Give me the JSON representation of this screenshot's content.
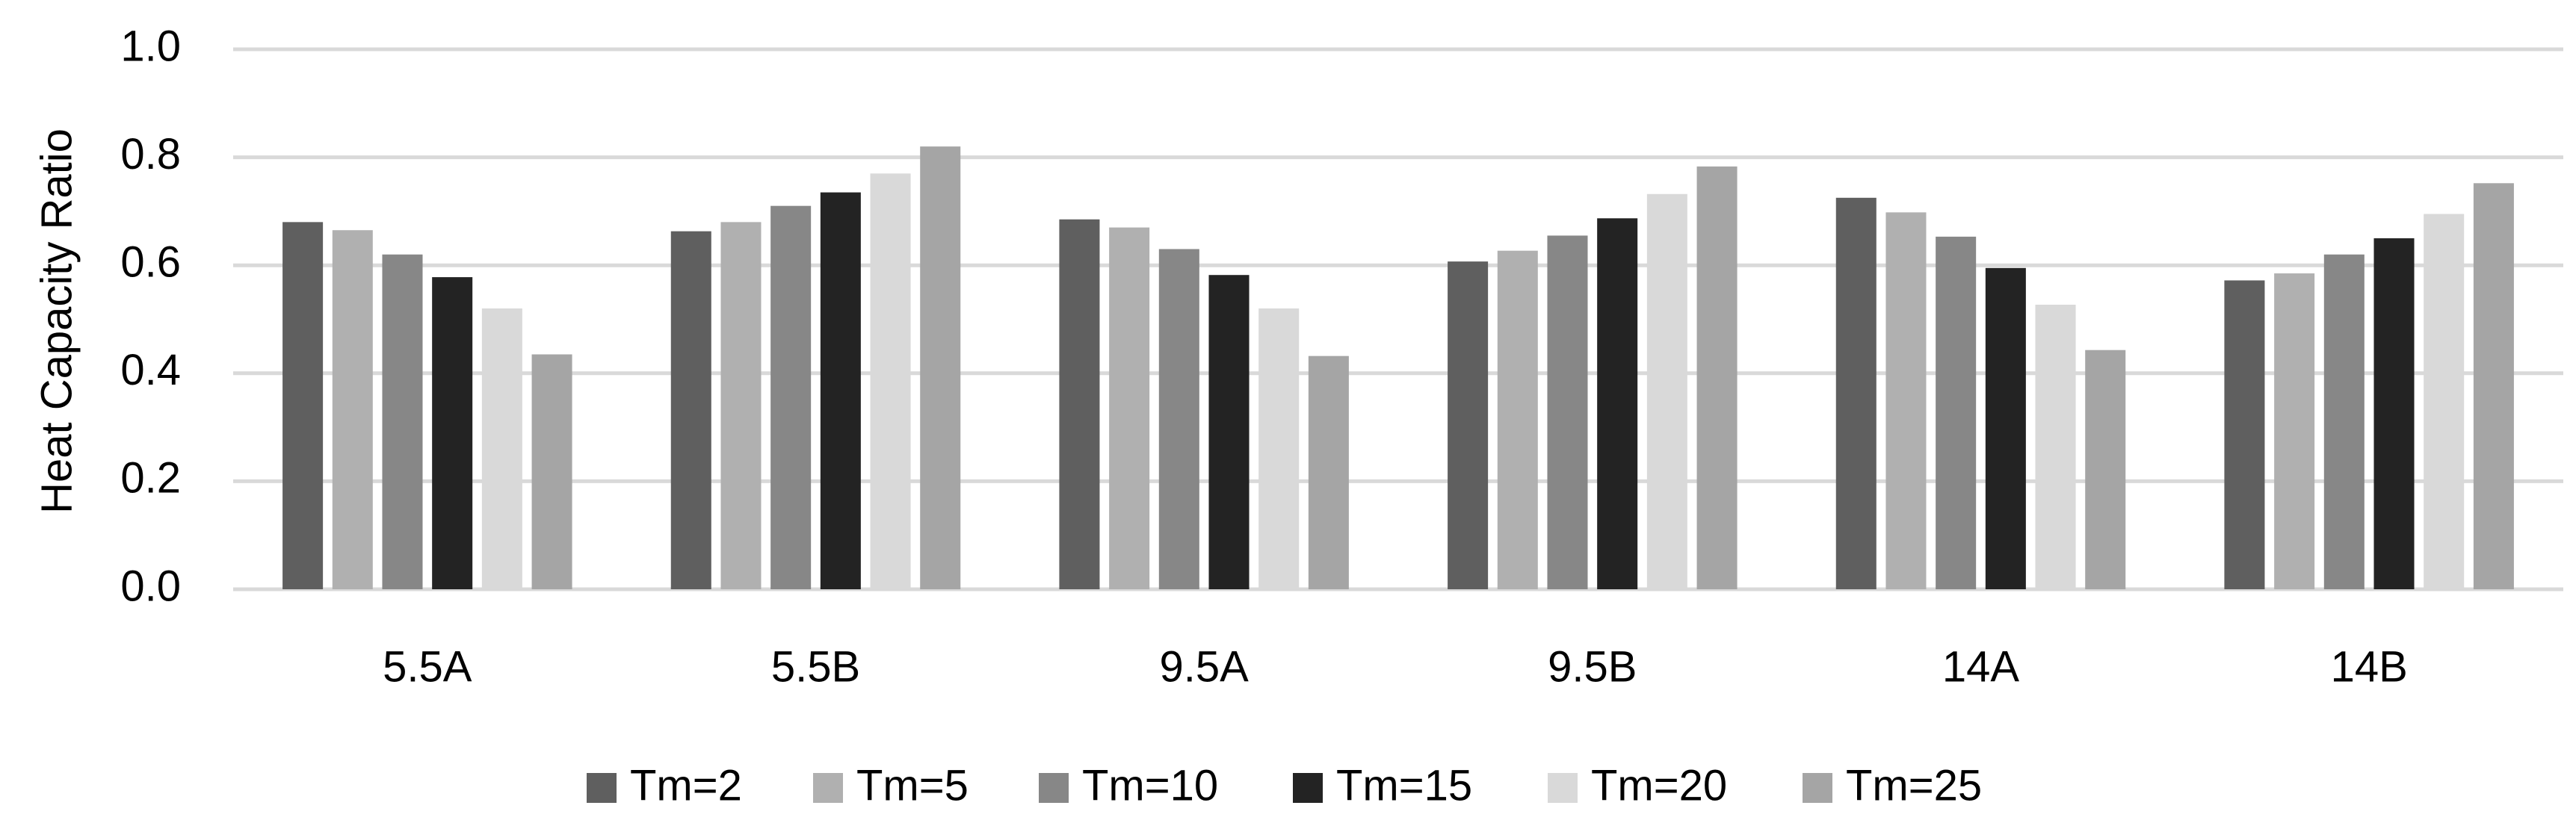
{
  "chart_data": {
    "type": "bar",
    "ylabel": "Heat Capacity Ratio",
    "categories": [
      "5.5A",
      "5.5B",
      "9.5A",
      "9.5B",
      "14A",
      "14B"
    ],
    "series": [
      {
        "name": "Tm=2",
        "color": "#5f5f5f",
        "values": [
          0.68,
          0.663,
          0.685,
          0.607,
          0.725,
          0.572
        ]
      },
      {
        "name": "Tm=5",
        "color": "#b0b0b0",
        "values": [
          0.665,
          0.68,
          0.67,
          0.627,
          0.698,
          0.585
        ]
      },
      {
        "name": "Tm=10",
        "color": "#878787",
        "values": [
          0.62,
          0.71,
          0.63,
          0.655,
          0.653,
          0.62
        ]
      },
      {
        "name": "Tm=15",
        "color": "#232323",
        "values": [
          0.578,
          0.735,
          0.582,
          0.687,
          0.595,
          0.65
        ]
      },
      {
        "name": "Tm=20",
        "color": "#d9d9d9",
        "values": [
          0.52,
          0.77,
          0.52,
          0.732,
          0.527,
          0.695
        ]
      },
      {
        "name": "Tm=25",
        "color": "#a5a5a5",
        "values": [
          0.435,
          0.82,
          0.432,
          0.783,
          0.443,
          0.752
        ]
      }
    ],
    "ylim": [
      0,
      1.0
    ],
    "yticks": [
      {
        "value": 0,
        "label": "0.0"
      },
      {
        "value": 0.2,
        "label": "0.2"
      },
      {
        "value": 0.4,
        "label": "0.4"
      },
      {
        "value": 0.6,
        "label": "0.6"
      },
      {
        "value": 0.8,
        "label": "0.8"
      },
      {
        "value": 1.0,
        "label": "1.0"
      }
    ],
    "grid": true,
    "legend": "bottom"
  }
}
